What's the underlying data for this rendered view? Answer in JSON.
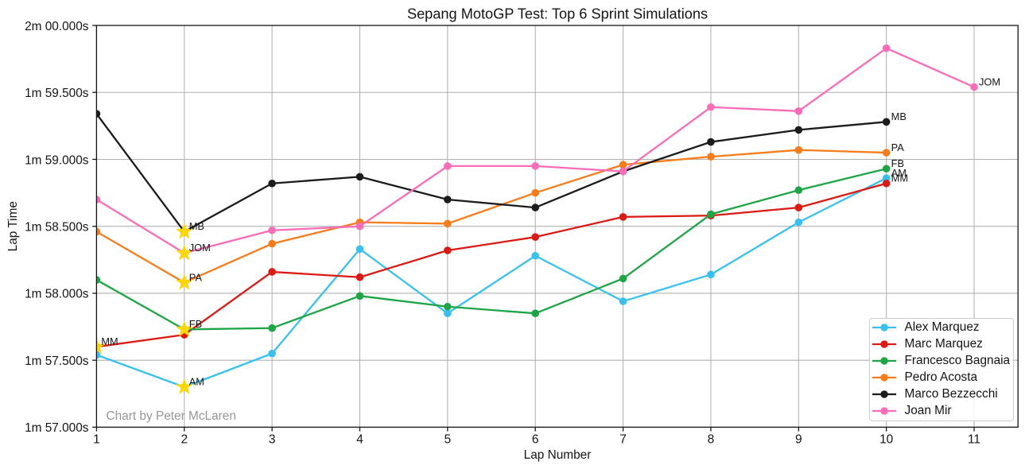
{
  "chart_data": {
    "type": "line",
    "title": "Sepang MotoGP Test: Top 6 Sprint Simulations",
    "xlabel": "Lap Number",
    "ylabel": "Lap Time",
    "watermark": "Chart by Peter McLaren",
    "grid": true,
    "legend_position": "lower right",
    "xlim": [
      1,
      11.5
    ],
    "ylim_seconds": [
      117.0,
      120.0
    ],
    "x_ticks": [
      "1",
      "2",
      "3",
      "4",
      "5",
      "6",
      "7",
      "8",
      "9",
      "10",
      "11"
    ],
    "y_ticks": [
      {
        "value": 120.0,
        "label": "2m 00.000s"
      },
      {
        "value": 119.5,
        "label": "1m 59.500s"
      },
      {
        "value": 119.0,
        "label": "1m 59.000s"
      },
      {
        "value": 118.5,
        "label": "1m 58.500s"
      },
      {
        "value": 118.0,
        "label": "1m 58.000s"
      },
      {
        "value": 117.5,
        "label": "1m 57.500s"
      },
      {
        "value": 117.0,
        "label": "1m 57.000s"
      }
    ],
    "fastest_lap_marker": {
      "shape": "star",
      "color": "#ffd700"
    },
    "series": [
      {
        "name": "Alex Marquez",
        "abbr": "AM",
        "color": "#36c1f0",
        "fastest_lap": 2,
        "lap_times_seconds": [
          117.54,
          117.3,
          117.55,
          118.33,
          117.85,
          118.28,
          117.94,
          118.14,
          118.53,
          118.86
        ]
      },
      {
        "name": "Marc Marquez",
        "abbr": "MM",
        "color": "#dc1912",
        "fastest_lap": 1,
        "lap_times_seconds": [
          117.6,
          117.69,
          118.16,
          118.12,
          118.32,
          118.42,
          118.57,
          118.58,
          118.64,
          118.82
        ]
      },
      {
        "name": "Francesco Bagnaia",
        "abbr": "FB",
        "color": "#1ea546",
        "fastest_lap": 2,
        "lap_times_seconds": [
          118.1,
          117.73,
          117.74,
          117.98,
          117.9,
          117.85,
          118.11,
          118.59,
          118.77,
          118.93
        ]
      },
      {
        "name": "Pedro Acosta",
        "abbr": "PA",
        "color": "#f87c19",
        "fastest_lap": 2,
        "lap_times_seconds": [
          118.46,
          118.08,
          118.37,
          118.53,
          118.52,
          118.75,
          118.96,
          119.02,
          119.07,
          119.05
        ]
      },
      {
        "name": "Marco Bezzecchi",
        "abbr": "MB",
        "color": "#1c1c1c",
        "fastest_lap": 2,
        "lap_times_seconds": [
          119.34,
          118.46,
          118.82,
          118.87,
          118.7,
          118.64,
          118.91,
          119.13,
          119.22,
          119.28
        ]
      },
      {
        "name": "Joan Mir",
        "abbr": "JOM",
        "color": "#fb6cb8",
        "fastest_lap": 2,
        "lap_times_seconds": [
          118.7,
          118.3,
          118.47,
          118.5,
          118.95,
          118.95,
          118.91,
          119.39,
          119.36,
          119.83,
          119.54
        ]
      }
    ]
  }
}
